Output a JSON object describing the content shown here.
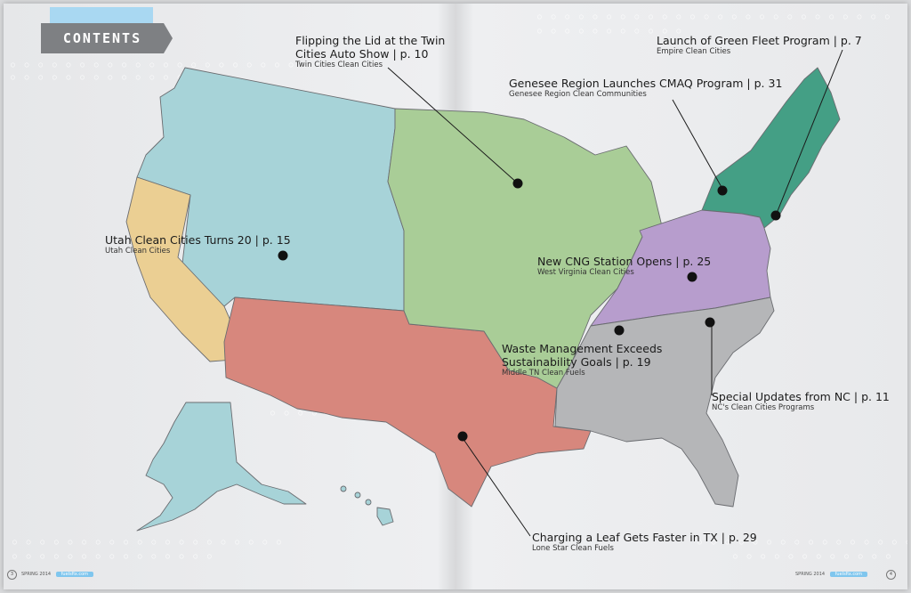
{
  "header": {
    "title": "CONTENTS"
  },
  "colors": {
    "northwest": "#a7d3d8",
    "california": "#ebcf93",
    "southwest": "#d7877d",
    "midwest": "#a9cd97",
    "northeast": "#449f85",
    "midatlantic": "#b79dcd",
    "southeast": "#b5b6b8",
    "alaska": "#a7d3d8",
    "hawaii": "#a7d3d8"
  },
  "articles": [
    {
      "title_line1": "Flipping the Lid at the Twin",
      "title_line2": "Cities Auto Show | p. 10",
      "subtitle": "Twin Cities Clean Cities"
    },
    {
      "title_line1": "Launch of Green Fleet Program | p. 7",
      "title_line2": "",
      "subtitle": "Empire Clean Cities"
    },
    {
      "title_line1": "Genesee Region Launches CMAQ Program | p. 31",
      "title_line2": "",
      "subtitle": "Genesee Region Clean Communities"
    },
    {
      "title_line1": "Utah Clean Cities Turns 20 | p. 15",
      "title_line2": "",
      "subtitle": "Utah Clean Cities"
    },
    {
      "title_line1": "New CNG Station Opens | p. 25",
      "title_line2": "",
      "subtitle": "West Virginia Clean Cities"
    },
    {
      "title_line1": "Waste Management Exceeds",
      "title_line2": "Sustainability Goals | p. 19",
      "subtitle": "Middle TN Clean Fuels"
    },
    {
      "title_line1": "Special Updates from NC | p. 11",
      "title_line2": "",
      "subtitle": "NC's Clean Cities Programs"
    },
    {
      "title_line1": "Charging a Leaf Gets Faster in TX | p. 29",
      "title_line2": "",
      "subtitle": "Lone Star Clean Fuels"
    }
  ],
  "footer": {
    "left_page": "3",
    "left_issue": "SPRING 2014",
    "left_url": "fuelsfix.com",
    "right_issue": "SPRING 2014",
    "right_url": "fuelsfix.com",
    "right_page": "4"
  }
}
